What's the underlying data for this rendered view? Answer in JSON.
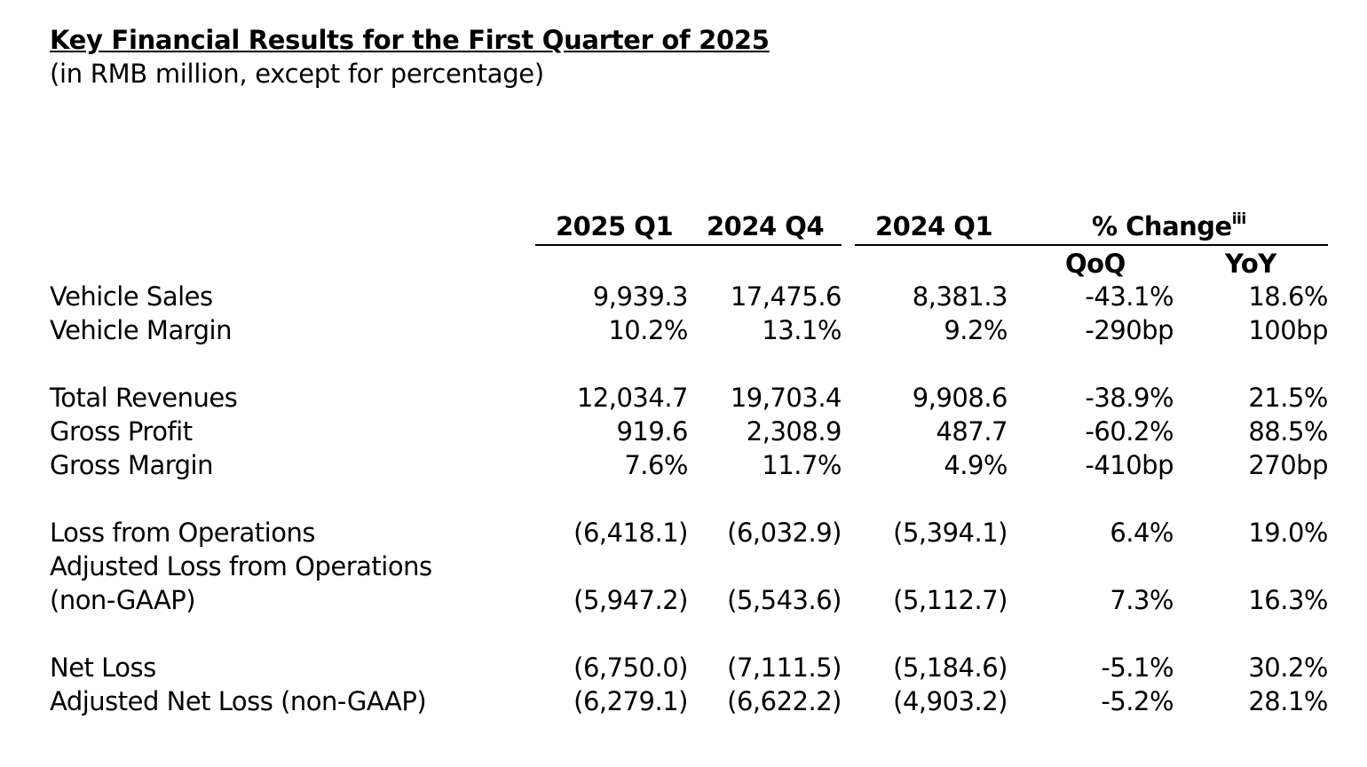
{
  "title": "Key Financial Results for the First Quarter of 2025",
  "subtitle": "(in RMB million, except for percentage)",
  "headers": {
    "col1": "2025 Q1",
    "col2": "2024 Q4",
    "col3": "2024 Q1",
    "change": "% Change",
    "change_note": "iii",
    "qoq": "QoQ",
    "yoy": "YoY"
  },
  "rows": [
    {
      "label": "Vehicle Sales",
      "q1_2025": "9,939.3",
      "q4_2024": "17,475.6",
      "q1_2024": "8,381.3",
      "qoq": "-43.1%",
      "yoy": "18.6%"
    },
    {
      "label": "Vehicle Margin",
      "q1_2025": "10.2%",
      "q4_2024": "13.1%",
      "q1_2024": "9.2%",
      "qoq": "-290bp",
      "yoy": "100bp"
    },
    {
      "label": "Total Revenues",
      "q1_2025": "12,034.7",
      "q4_2024": "19,703.4",
      "q1_2024": "9,908.6",
      "qoq": "-38.9%",
      "yoy": "21.5%"
    },
    {
      "label": "Gross Profit",
      "q1_2025": "919.6",
      "q4_2024": "2,308.9",
      "q1_2024": "487.7",
      "qoq": "-60.2%",
      "yoy": "88.5%"
    },
    {
      "label": "Gross Margin",
      "q1_2025": "7.6%",
      "q4_2024": "11.7%",
      "q1_2024": "4.9%",
      "qoq": "-410bp",
      "yoy": "270bp"
    },
    {
      "label": "Loss from Operations",
      "q1_2025": "(6,418.1)",
      "q4_2024": "(6,032.9)",
      "q1_2024": "(5,394.1)",
      "qoq": "6.4%",
      "yoy": "19.0%"
    },
    {
      "label": "Adjusted Loss from Operations",
      "label2": "(non-GAAP)",
      "q1_2025": "(5,947.2)",
      "q4_2024": "(5,543.6)",
      "q1_2024": "(5,112.7)",
      "qoq": "7.3%",
      "yoy": "16.3%"
    },
    {
      "label": "Net Loss",
      "q1_2025": "(6,750.0)",
      "q4_2024": "(7,111.5)",
      "q1_2024": "(5,184.6)",
      "qoq": "-5.1%",
      "yoy": "30.2%"
    },
    {
      "label": "Adjusted Net Loss (non-GAAP)",
      "q1_2025": "(6,279.1)",
      "q4_2024": "(6,622.2)",
      "q1_2024": "(4,903.2)",
      "qoq": "-5.2%",
      "yoy": "28.1%"
    }
  ]
}
